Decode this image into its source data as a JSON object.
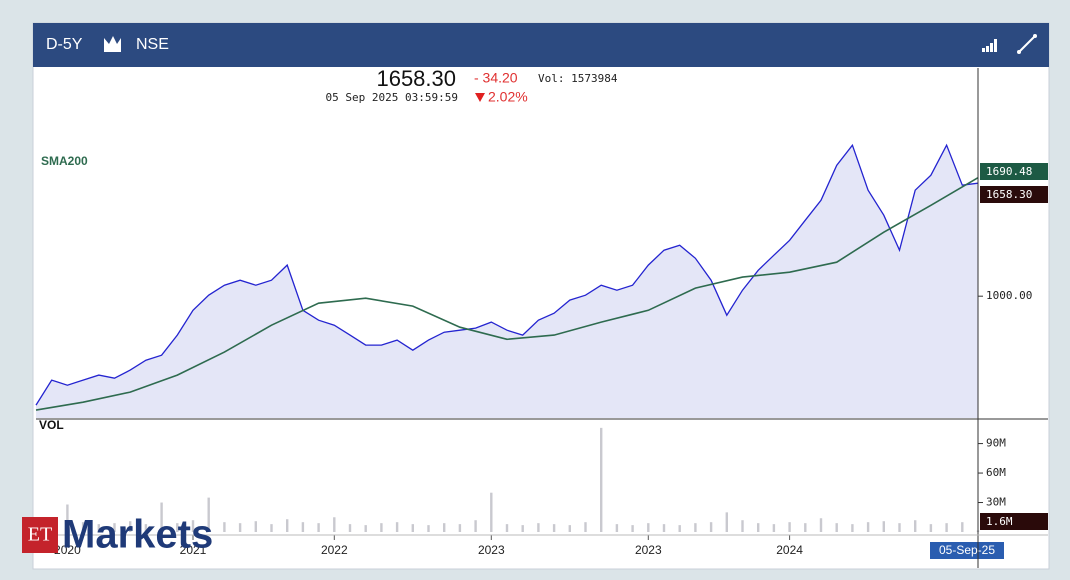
{
  "toolbar": {
    "period": "D-5Y",
    "exchange": "NSE"
  },
  "quote": {
    "price": "1658.30",
    "change": "- 34.20",
    "volume": "Vol: 1573984",
    "datetime": "05 Sep 2025 03:59:59",
    "change_pct": "2.02%"
  },
  "brand": {
    "et": "ET",
    "markets": "Markets"
  },
  "chart_data": [
    {
      "type": "line",
      "xlim": [
        0,
        60
      ],
      "ylim": [
        290,
        2330
      ],
      "yticks": [
        {
          "value": 1000,
          "label": "1000.00"
        }
      ],
      "series": [
        {
          "color": "#2424d0",
          "fill": "#e4e6f7",
          "x": [
            0,
            1,
            2,
            3,
            4,
            5,
            6,
            7,
            8,
            9,
            10,
            11,
            12,
            13,
            14,
            15,
            16,
            17,
            18,
            19,
            20,
            21,
            22,
            23,
            24,
            25,
            26,
            27,
            28,
            29,
            30,
            31,
            32,
            33,
            34,
            35,
            36,
            37,
            38,
            39,
            40,
            41,
            42,
            43,
            44,
            45,
            46,
            47,
            48,
            49,
            50,
            51,
            52,
            53,
            54,
            55,
            56,
            57,
            58,
            59,
            60
          ],
          "values": [
            365,
            511,
            481,
            511,
            540,
            522,
            569,
            627,
            656,
            773,
            918,
            1006,
            1064,
            1093,
            1064,
            1093,
            1181,
            918,
            860,
            831,
            773,
            715,
            715,
            744,
            685,
            744,
            790,
            802,
            814,
            849,
            802,
            773,
            860,
            901,
            977,
            1006,
            1064,
            1035,
            1064,
            1181,
            1268,
            1297,
            1221,
            1093,
            889,
            1035,
            1151,
            1239,
            1326,
            1443,
            1559,
            1763,
            1880,
            1618,
            1472,
            1268,
            1618,
            1705,
            1880,
            1647,
            1658.3
          ],
          "value_labels": [
            null,
            null,
            null,
            null,
            null,
            null,
            null,
            null,
            null,
            null,
            null,
            null,
            null,
            null,
            null,
            null,
            null,
            null,
            null,
            null,
            null,
            null,
            null,
            null,
            null,
            null,
            null,
            null,
            null,
            null,
            null,
            null,
            null,
            null,
            null,
            null,
            null,
            null,
            null,
            null,
            null,
            null,
            null,
            null,
            null,
            null,
            null,
            null,
            null,
            null,
            null,
            null,
            null,
            null,
            null,
            null,
            null,
            null,
            null,
            null,
            "1658.30"
          ]
        },
        {
          "name": "SMA200",
          "color": "#2e6b4f",
          "label_bg": "#1d5a44",
          "x": [
            0,
            3,
            6,
            9,
            12,
            15,
            18,
            21,
            24,
            27,
            30,
            33,
            36,
            39,
            42,
            45,
            48,
            51,
            54,
            57,
            60
          ],
          "values": [
            336,
            382,
            441,
            540,
            674,
            831,
            959,
            988,
            942,
            819,
            749,
            773,
            849,
            918,
            1047,
            1111,
            1140,
            1198,
            1373,
            1530,
            1690.48
          ]
        }
      ]
    },
    {
      "type": "bar",
      "title": "VOL",
      "xlim": [
        0,
        60
      ],
      "ylim": [
        0,
        114000000
      ],
      "color": "#c9c9cf",
      "yticks": [
        {
          "value": 30000000,
          "label": "30M"
        },
        {
          "value": 60000000,
          "label": "60M"
        },
        {
          "value": 90000000,
          "label": "90M"
        }
      ],
      "xticks": [
        {
          "value": 2,
          "label": "2020"
        },
        {
          "value": 10,
          "label": "2021"
        },
        {
          "value": 19,
          "label": "2022"
        },
        {
          "value": 29,
          "label": "2023"
        },
        {
          "value": 39,
          "label": "2023"
        },
        {
          "value": 48,
          "label": "2024"
        },
        {
          "value": 60,
          "label": "05-Sep-25"
        }
      ],
      "series": [
        {
          "x": [
            0,
            1,
            2,
            3,
            4,
            5,
            6,
            7,
            8,
            9,
            10,
            11,
            12,
            13,
            14,
            15,
            16,
            17,
            18,
            19,
            20,
            21,
            22,
            23,
            24,
            25,
            26,
            27,
            28,
            29,
            30,
            31,
            32,
            33,
            34,
            35,
            36,
            37,
            38,
            39,
            40,
            41,
            42,
            43,
            44,
            45,
            46,
            47,
            48,
            49,
            50,
            51,
            52,
            53,
            54,
            55,
            56,
            57,
            58,
            59,
            60
          ],
          "values": [
            9000000,
            12000000,
            28000000,
            10000000,
            8000000,
            9000000,
            11000000,
            8000000,
            30000000,
            9000000,
            12000000,
            35000000,
            10000000,
            9000000,
            11000000,
            8000000,
            13000000,
            10000000,
            9000000,
            15000000,
            8000000,
            7000000,
            9000000,
            10000000,
            8000000,
            7000000,
            9000000,
            8000000,
            12000000,
            40000000,
            8000000,
            7000000,
            9000000,
            8000000,
            7000000,
            10000000,
            106000000,
            8000000,
            7000000,
            9000000,
            8000000,
            7000000,
            9000000,
            10000000,
            20000000,
            12000000,
            9000000,
            8000000,
            10000000,
            9000000,
            14000000,
            9000000,
            8000000,
            10000000,
            11000000,
            9000000,
            12000000,
            8000000,
            9000000,
            10000000,
            1573984
          ],
          "value_labels": [
            null,
            null,
            null,
            null,
            null,
            null,
            null,
            null,
            null,
            null,
            null,
            null,
            null,
            null,
            null,
            null,
            null,
            null,
            null,
            null,
            null,
            null,
            null,
            null,
            null,
            null,
            null,
            null,
            null,
            null,
            null,
            null,
            null,
            null,
            null,
            null,
            null,
            null,
            null,
            null,
            null,
            null,
            null,
            null,
            null,
            null,
            null,
            null,
            null,
            null,
            null,
            null,
            null,
            null,
            null,
            null,
            null,
            null,
            null,
            null,
            "1.6M"
          ]
        }
      ]
    }
  ]
}
